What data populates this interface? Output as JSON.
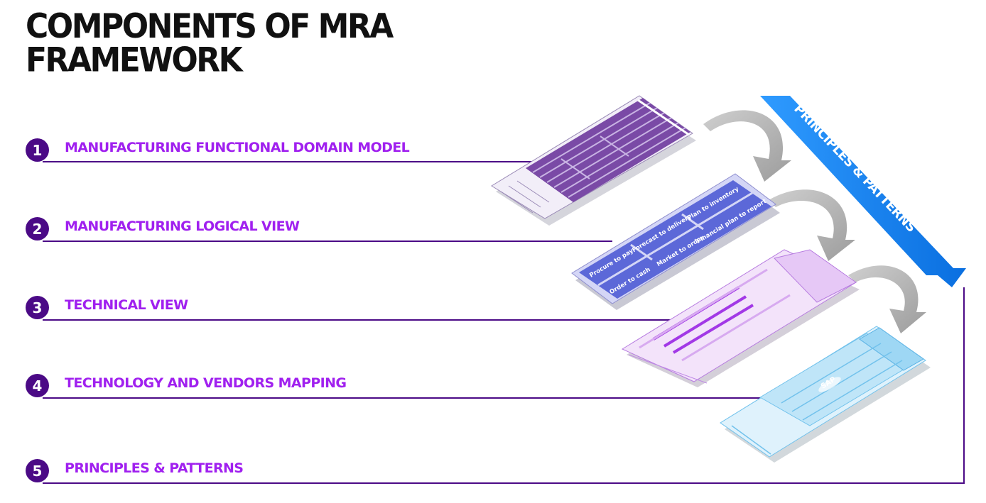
{
  "title": {
    "line1": "COMPONENTS OF MRA",
    "line2": "FRAMEWORK"
  },
  "items": [
    {
      "number": "1",
      "label": "MANUFACTURING FUNCTIONAL DOMAIN MODEL"
    },
    {
      "number": "2",
      "label": "MANUFACTURING LOGICAL VIEW"
    },
    {
      "number": "3",
      "label": "TECHNICAL VIEW"
    },
    {
      "number": "4",
      "label": "TECHNOLOGY AND VENDORS MAPPING"
    },
    {
      "number": "5",
      "label": "PRINCIPLES & PATTERNS"
    }
  ],
  "banner": {
    "text": "PRINCIPLES & PATTERNS"
  },
  "logical_view_processes": [
    "Procure to pay",
    "Forecast to delivery",
    "Plan to inventory",
    "Order to cash",
    "Market to order",
    "Financial plan to report"
  ],
  "vendor_layer": {
    "logo_text": "SAP"
  },
  "colors": {
    "title": "#111111",
    "number_badge": "#4b0a86",
    "label": "#a020ef",
    "connector_line": "#4b0a86",
    "banner": "#1a8cff"
  }
}
